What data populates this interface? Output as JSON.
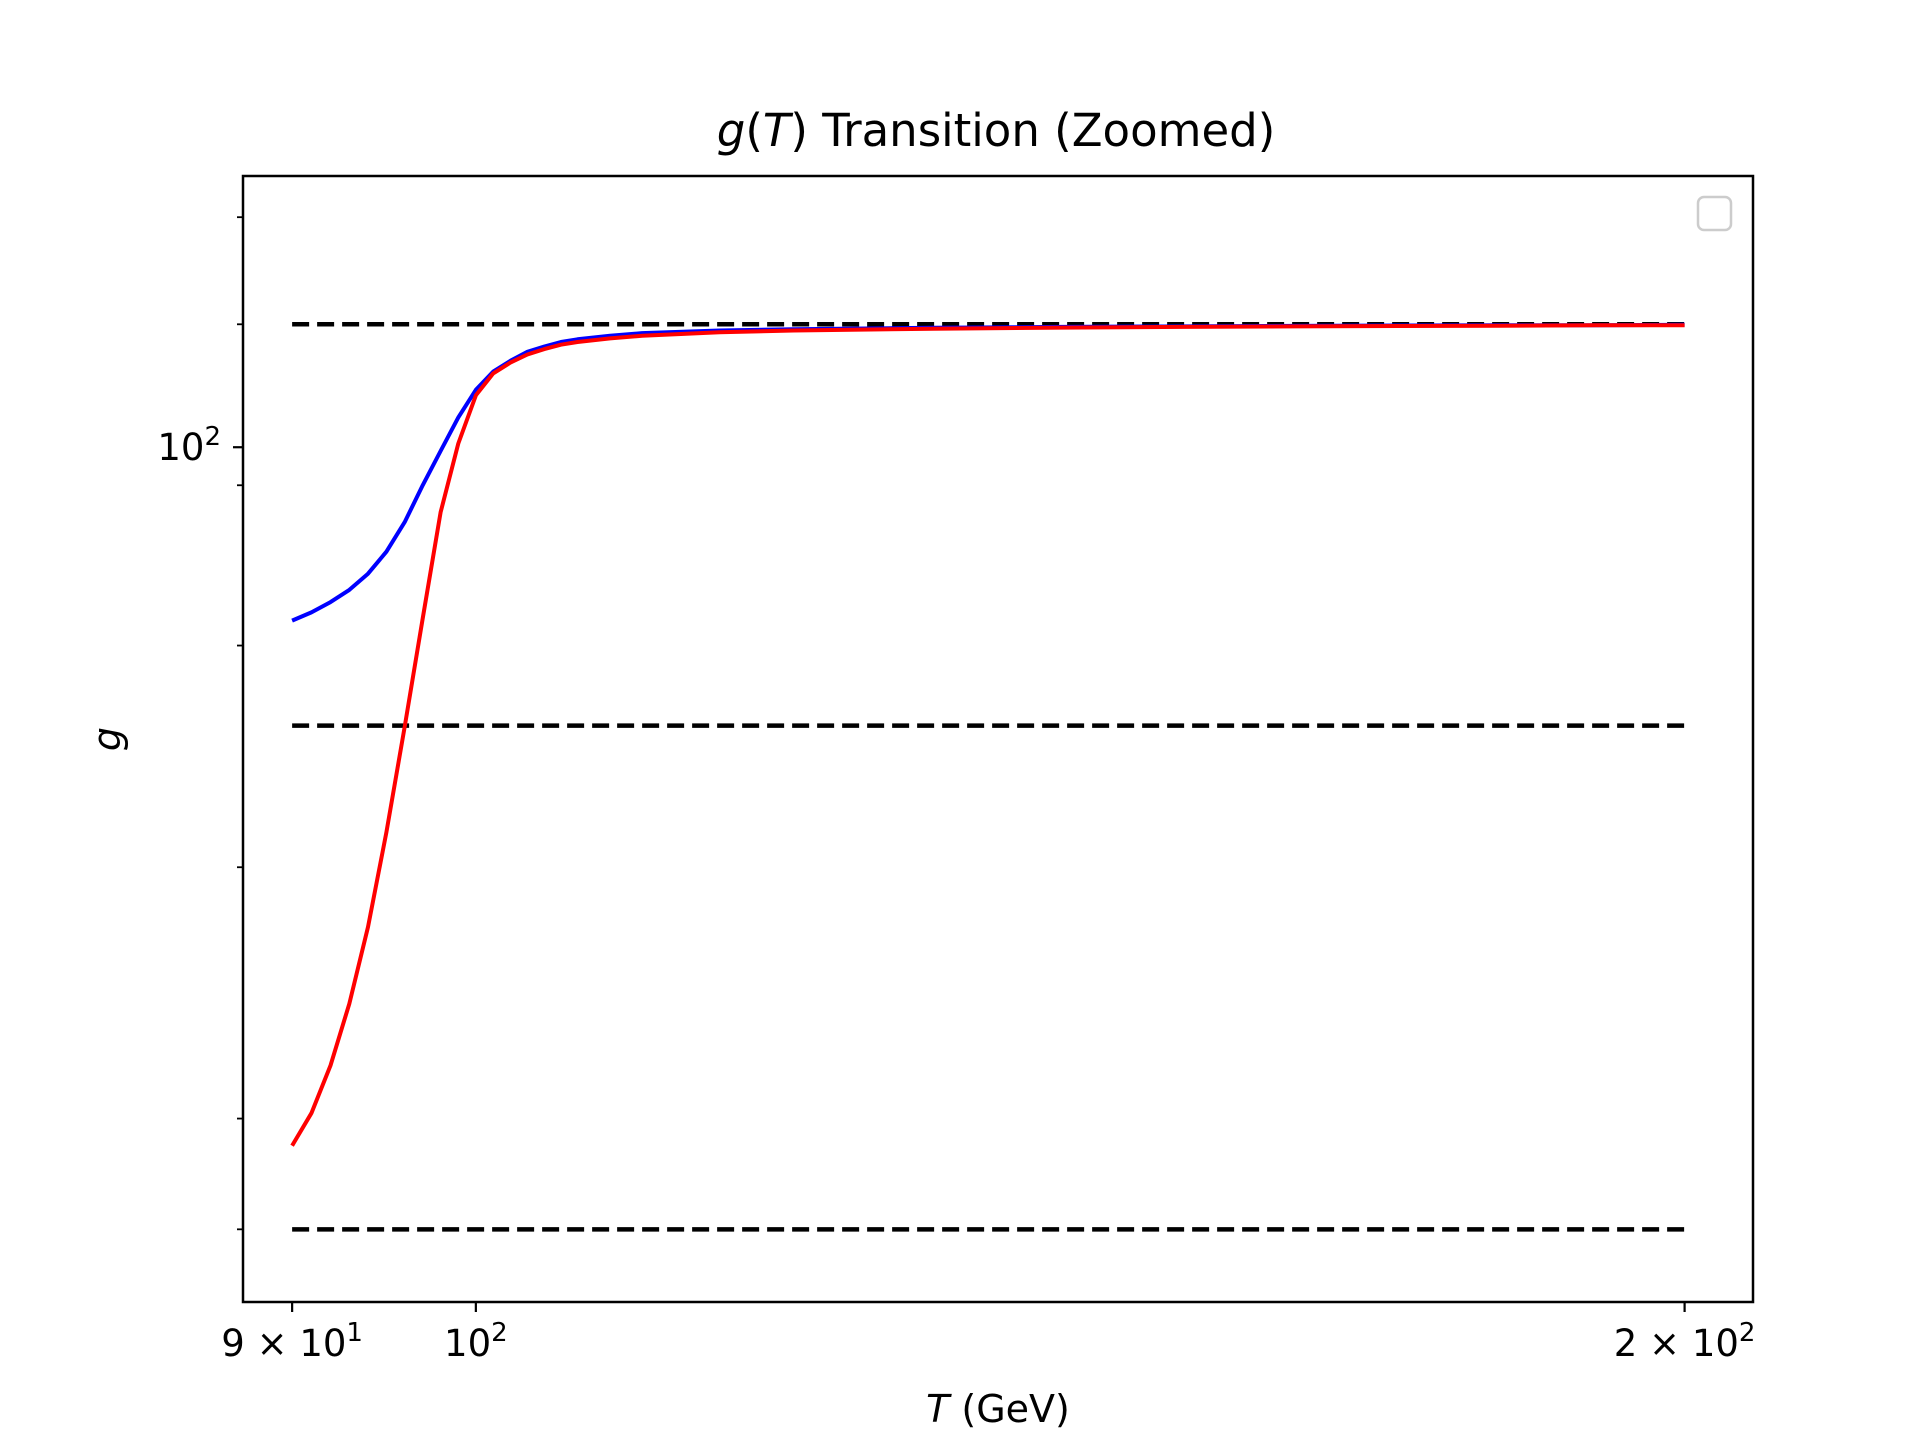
{
  "chart_data": {
    "type": "line",
    "title": {
      "var": "g",
      "paren_open": "(",
      "arg": "T",
      "rest": ") Transition (Zoomed)"
    },
    "xlabel": {
      "var": "T",
      "unit": " (GeV)"
    },
    "ylabel": "g",
    "xscale": "log",
    "yscale": "log",
    "xlim": [
      87.5,
      208
    ],
    "ylim": [
      63.5,
      115.5
    ],
    "x_ticks": [
      {
        "value": 90,
        "label_mantissa": "9",
        "label_times": "×",
        "label_base": "10",
        "label_exp": "1"
      },
      {
        "value": 100,
        "label_mantissa": "",
        "label_times": "",
        "label_base": "10",
        "label_exp": "2"
      },
      {
        "value": 200,
        "label_mantissa": "2",
        "label_times": "×",
        "label_base": "10",
        "label_exp": "2"
      }
    ],
    "y_ticks": [
      {
        "value": 100,
        "label_base": "10",
        "label_exp": "2"
      }
    ],
    "y_minor_ticks": [
      66,
      70,
      80,
      90,
      98,
      106.75,
      113
    ],
    "hlines": [
      {
        "y": 106.75,
        "x_range": [
          90,
          200
        ],
        "style": "dashed",
        "color": "#000000"
      },
      {
        "y": 86.25,
        "x_range": [
          90,
          200
        ],
        "style": "dashed",
        "color": "#000000"
      },
      {
        "y": 66.0,
        "x_range": [
          90,
          200
        ],
        "style": "dashed",
        "color": "#000000"
      }
    ],
    "series": [
      {
        "color": "#0000ff",
        "x": [
          90,
          91,
          92,
          93,
          94,
          95,
          96,
          97,
          98,
          99,
          100,
          101,
          102,
          103,
          104,
          105,
          106,
          108,
          110,
          115,
          120,
          130,
          140,
          150,
          160,
          170,
          180,
          190,
          200
        ],
        "y": [
          91.2,
          91.6,
          92.1,
          92.7,
          93.5,
          94.6,
          96.1,
          98.0,
          99.8,
          101.6,
          103.1,
          104.1,
          104.7,
          105.2,
          105.5,
          105.75,
          105.9,
          106.1,
          106.25,
          106.4,
          106.47,
          106.55,
          106.6,
          106.63,
          106.66,
          106.68,
          106.69,
          106.7,
          106.72
        ]
      },
      {
        "color": "#ff0000",
        "x": [
          90,
          91,
          92,
          93,
          94,
          95,
          96,
          97,
          98,
          99,
          100,
          101,
          102,
          103,
          104,
          105,
          106,
          108,
          110,
          115,
          120,
          130,
          140,
          150,
          160,
          170,
          180,
          190,
          200
        ],
        "y": [
          69.0,
          70.2,
          72.0,
          74.4,
          77.5,
          81.5,
          86.2,
          91.3,
          96.6,
          100.2,
          102.8,
          104.0,
          104.6,
          105.05,
          105.35,
          105.6,
          105.75,
          105.95,
          106.1,
          106.3,
          106.4,
          106.5,
          106.56,
          106.6,
          106.63,
          106.65,
          106.67,
          106.69,
          106.7
        ]
      }
    ],
    "legend": {
      "location": "upper right",
      "entries": []
    },
    "grid": false
  }
}
